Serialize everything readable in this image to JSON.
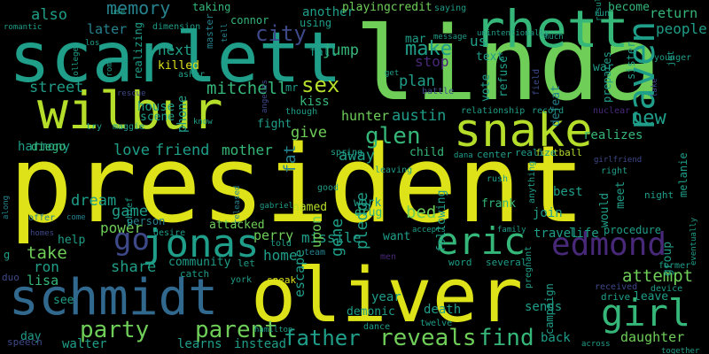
{
  "palette": {
    "yellow": "#dde318",
    "lime": "#b5de2b",
    "green": "#6ece58",
    "teal_green": "#35b779",
    "teal": "#1f9e89",
    "cyan": "#26828e",
    "blue": "#31688e",
    "indigo": "#3e4989",
    "violet": "#482878",
    "purple": "#440154"
  },
  "words": [
    {
      "text": "president"
    },
    {
      "text": "linda"
    },
    {
      "text": "scarlett"
    },
    {
      "text": "oliver"
    },
    {
      "text": "wilbur"
    },
    {
      "text": "rhett"
    },
    {
      "text": "schmidt"
    },
    {
      "text": "snake"
    },
    {
      "text": "jonas"
    },
    {
      "text": "eric"
    },
    {
      "text": "raven"
    },
    {
      "text": "edmond"
    },
    {
      "text": "girl"
    },
    {
      "text": "go"
    },
    {
      "text": "party"
    },
    {
      "text": "parent"
    },
    {
      "text": "reveals"
    },
    {
      "text": "find"
    },
    {
      "text": "father"
    },
    {
      "text": "glen"
    },
    {
      "text": "sex"
    },
    {
      "text": "mitchell"
    },
    {
      "text": "memory"
    },
    {
      "text": "street"
    },
    {
      "text": "city"
    },
    {
      "text": "also"
    },
    {
      "text": "new"
    },
    {
      "text": "make"
    },
    {
      "text": "us"
    },
    {
      "text": "attempt"
    },
    {
      "text": "people"
    },
    {
      "text": "return"
    },
    {
      "text": "austin"
    },
    {
      "text": "plan"
    },
    {
      "text": "stop"
    },
    {
      "text": "bed"
    },
    {
      "text": "dream"
    },
    {
      "text": "friend"
    },
    {
      "text": "mother"
    },
    {
      "text": "love"
    },
    {
      "text": "game"
    },
    {
      "text": "power"
    },
    {
      "text": "take"
    },
    {
      "text": "ron"
    },
    {
      "text": "lisa"
    },
    {
      "text": "share"
    },
    {
      "text": "home"
    },
    {
      "text": "perry"
    },
    {
      "text": "missile"
    },
    {
      "text": "gene"
    },
    {
      "text": "pledge"
    },
    {
      "text": "upon"
    },
    {
      "text": "escape"
    },
    {
      "text": "fat"
    },
    {
      "text": "give"
    },
    {
      "text": "away"
    },
    {
      "text": "kiss"
    },
    {
      "text": "hunter"
    },
    {
      "text": "next"
    },
    {
      "text": "killed"
    },
    {
      "text": "later"
    },
    {
      "text": "harmony"
    },
    {
      "text": "house"
    },
    {
      "text": "phone"
    },
    {
      "text": "another"
    },
    {
      "text": "jump"
    },
    {
      "text": "fall"
    },
    {
      "text": "playingcredit"
    },
    {
      "text": "taking"
    },
    {
      "text": "connor"
    },
    {
      "text": "become"
    },
    {
      "text": "diego"
    },
    {
      "text": "help"
    },
    {
      "text": "community"
    },
    {
      "text": "attacked"
    },
    {
      "text": "named"
    },
    {
      "text": "drug"
    },
    {
      "text": "work"
    },
    {
      "text": "frank"
    },
    {
      "text": "child"
    },
    {
      "text": "following"
    },
    {
      "text": "join"
    },
    {
      "text": "best"
    },
    {
      "text": "travel"
    },
    {
      "text": "life"
    },
    {
      "text": "group"
    },
    {
      "text": "would"
    },
    {
      "text": "meet"
    },
    {
      "text": "leave"
    },
    {
      "text": "drive"
    },
    {
      "text": "daughter"
    },
    {
      "text": "back"
    },
    {
      "text": "death"
    },
    {
      "text": "sends"
    },
    {
      "text": "campaign"
    },
    {
      "text": "year"
    },
    {
      "text": "demonic"
    },
    {
      "text": "see"
    },
    {
      "text": "day"
    },
    {
      "text": "walter"
    },
    {
      "text": "learns"
    },
    {
      "text": "instead"
    },
    {
      "text": "realizes"
    },
    {
      "text": "war"
    },
    {
      "text": "defeat"
    },
    {
      "text": "vote"
    },
    {
      "text": "refuse"
    },
    {
      "text": "text"
    },
    {
      "text": "mar"
    },
    {
      "text": "fight"
    },
    {
      "text": "mr"
    },
    {
      "text": "scene"
    },
    {
      "text": "realizing"
    },
    {
      "text": "master"
    },
    {
      "text": "sister"
    },
    {
      "text": "prepares"
    },
    {
      "text": "melanie"
    },
    {
      "text": "want"
    },
    {
      "text": "men"
    },
    {
      "text": "sneak"
    },
    {
      "text": "person"
    },
    {
      "text": "speech"
    },
    {
      "text": "duo"
    },
    {
      "text": "g"
    },
    {
      "text": "york"
    },
    {
      "text": "catch"
    },
    {
      "text": "let"
    },
    {
      "text": "team"
    },
    {
      "text": "word"
    },
    {
      "text": "several"
    },
    {
      "text": "pregnant"
    },
    {
      "text": "received"
    },
    {
      "text": "device"
    },
    {
      "text": "former"
    },
    {
      "text": "night"
    },
    {
      "text": "procedure"
    },
    {
      "text": "football"
    },
    {
      "text": "realize"
    },
    {
      "text": "center"
    },
    {
      "text": "dana"
    },
    {
      "text": "anything"
    },
    {
      "text": "rush"
    },
    {
      "text": "leaving"
    },
    {
      "text": "spring"
    },
    {
      "text": "good"
    },
    {
      "text": "released"
    },
    {
      "text": "gabriel"
    },
    {
      "text": "desire"
    },
    {
      "text": "offer"
    },
    {
      "text": "chief"
    },
    {
      "text": "come"
    },
    {
      "text": "along"
    },
    {
      "text": "tell"
    },
    {
      "text": "know"
    },
    {
      "text": "maggie"
    },
    {
      "text": "try"
    },
    {
      "text": "rescue"
    },
    {
      "text": "angeles"
    },
    {
      "text": "though"
    },
    {
      "text": "relationship"
    },
    {
      "text": "record"
    },
    {
      "text": "nuclear"
    },
    {
      "text": "battle"
    },
    {
      "text": "field"
    },
    {
      "text": "get"
    },
    {
      "text": "saying"
    },
    {
      "text": "message"
    },
    {
      "text": "unintentionally"
    },
    {
      "text": "much"
    },
    {
      "text": "result"
    },
    {
      "text": "younger"
    },
    {
      "text": "jet"
    },
    {
      "text": "lake"
    },
    {
      "text": "run"
    },
    {
      "text": "use"
    },
    {
      "text": "romantic"
    },
    {
      "text": "dimension"
    },
    {
      "text": "los"
    },
    {
      "text": "prom"
    },
    {
      "text": "college"
    },
    {
      "text": "asher"
    },
    {
      "text": "told"
    },
    {
      "text": "hamilton"
    },
    {
      "text": "dance"
    },
    {
      "text": "twelve"
    },
    {
      "text": "across"
    },
    {
      "text": "together"
    },
    {
      "text": "accepts"
    },
    {
      "text": "family"
    },
    {
      "text": "eventually"
    },
    {
      "text": "using"
    },
    {
      "text": "right"
    },
    {
      "text": "girlfriend"
    },
    {
      "text": "homes"
    }
  ]
}
